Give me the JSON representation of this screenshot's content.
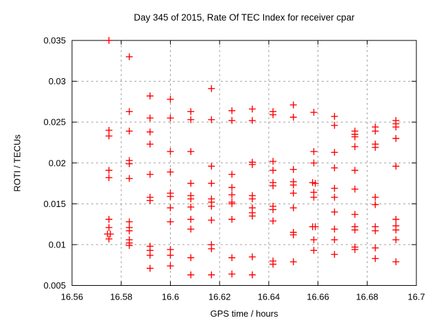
{
  "chart_data": {
    "type": "scatter",
    "title": "Day 345 of 2015, Rate Of TEC Index for receiver cpar",
    "xlabel": "GPS time / hours",
    "ylabel": "ROTI / TECUs",
    "xlim": [
      16.56,
      16.7
    ],
    "ylim": [
      0.005,
      0.035
    ],
    "xticks": [
      16.56,
      16.58,
      16.6,
      16.62,
      16.64,
      16.66,
      16.68,
      16.7
    ],
    "xtick_labels": [
      "16.56",
      "16.58",
      "16.6",
      "16.62",
      "16.64",
      "16.66",
      "16.68",
      "16.7"
    ],
    "yticks": [
      0.005,
      0.01,
      0.015,
      0.02,
      0.025,
      0.03,
      0.035
    ],
    "ytick_labels": [
      "0.005",
      "0.01",
      "0.015",
      "0.02",
      "0.025",
      "0.03",
      "0.035"
    ],
    "grid": true,
    "legend": "none",
    "marker": "plus",
    "marker_color": "#ff0000",
    "grid_color": "#a0a0a0",
    "axis_color": "#000000",
    "series": [
      {
        "name": "ROTI",
        "points": [
          [
            16.575,
            0.035
          ],
          [
            16.575,
            0.024
          ],
          [
            16.575,
            0.0233
          ],
          [
            16.575,
            0.0191
          ],
          [
            16.575,
            0.0182
          ],
          [
            16.575,
            0.0131
          ],
          [
            16.575,
            0.0121
          ],
          [
            16.5744,
            0.0113
          ],
          [
            16.5756,
            0.0113
          ],
          [
            16.575,
            0.0107
          ],
          [
            16.5833,
            0.033
          ],
          [
            16.5833,
            0.0263
          ],
          [
            16.5833,
            0.0239
          ],
          [
            16.5833,
            0.0203
          ],
          [
            16.5833,
            0.0199
          ],
          [
            16.5833,
            0.0181
          ],
          [
            16.5833,
            0.0128
          ],
          [
            16.5833,
            0.0121
          ],
          [
            16.5833,
            0.0117
          ],
          [
            16.5833,
            0.0106
          ],
          [
            16.5833,
            0.0102
          ],
          [
            16.5833,
            0.0099
          ],
          [
            16.5917,
            0.0282
          ],
          [
            16.5917,
            0.0255
          ],
          [
            16.5917,
            0.0238
          ],
          [
            16.5917,
            0.0223
          ],
          [
            16.5917,
            0.0186
          ],
          [
            16.5917,
            0.0158
          ],
          [
            16.5917,
            0.0154
          ],
          [
            16.5917,
            0.0098
          ],
          [
            16.5917,
            0.0093
          ],
          [
            16.5917,
            0.0087
          ],
          [
            16.5917,
            0.0071
          ],
          [
            16.6,
            0.0278
          ],
          [
            16.6,
            0.0255
          ],
          [
            16.6,
            0.0214
          ],
          [
            16.6,
            0.0189
          ],
          [
            16.6,
            0.0163
          ],
          [
            16.6,
            0.0159
          ],
          [
            16.6,
            0.0145
          ],
          [
            16.6,
            0.0128
          ],
          [
            16.6,
            0.0094
          ],
          [
            16.6,
            0.0087
          ],
          [
            16.6,
            0.0074
          ],
          [
            16.6083,
            0.0263
          ],
          [
            16.6083,
            0.0253
          ],
          [
            16.6083,
            0.0214
          ],
          [
            16.6083,
            0.0175
          ],
          [
            16.6083,
            0.016
          ],
          [
            16.6083,
            0.0156
          ],
          [
            16.6083,
            0.0146
          ],
          [
            16.6083,
            0.0131
          ],
          [
            16.6083,
            0.0119
          ],
          [
            16.6083,
            0.0084
          ],
          [
            16.6083,
            0.0063
          ],
          [
            16.6167,
            0.0291
          ],
          [
            16.6167,
            0.0253
          ],
          [
            16.6167,
            0.0196
          ],
          [
            16.6167,
            0.0175
          ],
          [
            16.6167,
            0.0156
          ],
          [
            16.6167,
            0.0152
          ],
          [
            16.6167,
            0.0147
          ],
          [
            16.6167,
            0.013
          ],
          [
            16.6167,
            0.01
          ],
          [
            16.6167,
            0.0095
          ],
          [
            16.6167,
            0.0063
          ],
          [
            16.625,
            0.0264
          ],
          [
            16.625,
            0.0252
          ],
          [
            16.625,
            0.0186
          ],
          [
            16.625,
            0.017
          ],
          [
            16.625,
            0.0161
          ],
          [
            16.625,
            0.0152
          ],
          [
            16.625,
            0.015
          ],
          [
            16.625,
            0.0131
          ],
          [
            16.625,
            0.0084
          ],
          [
            16.625,
            0.0064
          ],
          [
            16.6333,
            0.0266
          ],
          [
            16.6333,
            0.0252
          ],
          [
            16.6333,
            0.0201
          ],
          [
            16.6333,
            0.0198
          ],
          [
            16.6333,
            0.016
          ],
          [
            16.6333,
            0.0156
          ],
          [
            16.6333,
            0.0145
          ],
          [
            16.6333,
            0.0139
          ],
          [
            16.6333,
            0.0135
          ],
          [
            16.6333,
            0.0085
          ],
          [
            16.6333,
            0.0063
          ],
          [
            16.6417,
            0.0263
          ],
          [
            16.6417,
            0.0259
          ],
          [
            16.6417,
            0.0202
          ],
          [
            16.6417,
            0.0191
          ],
          [
            16.6417,
            0.0176
          ],
          [
            16.6417,
            0.0172
          ],
          [
            16.6417,
            0.0147
          ],
          [
            16.6417,
            0.0143
          ],
          [
            16.6417,
            0.0129
          ],
          [
            16.6417,
            0.008
          ],
          [
            16.6417,
            0.0076
          ],
          [
            16.65,
            0.0271
          ],
          [
            16.65,
            0.0256
          ],
          [
            16.65,
            0.0192
          ],
          [
            16.65,
            0.0177
          ],
          [
            16.65,
            0.0173
          ],
          [
            16.65,
            0.0163
          ],
          [
            16.65,
            0.0145
          ],
          [
            16.65,
            0.0115
          ],
          [
            16.65,
            0.0112
          ],
          [
            16.65,
            0.0079
          ],
          [
            16.6583,
            0.0262
          ],
          [
            16.6583,
            0.0214
          ],
          [
            16.6583,
            0.02
          ],
          [
            16.6578,
            0.0176
          ],
          [
            16.6589,
            0.0175
          ],
          [
            16.6583,
            0.0164
          ],
          [
            16.6583,
            0.0158
          ],
          [
            16.6578,
            0.0122
          ],
          [
            16.6589,
            0.0122
          ],
          [
            16.6583,
            0.0106
          ],
          [
            16.6583,
            0.0093
          ],
          [
            16.6667,
            0.0257
          ],
          [
            16.6667,
            0.0246
          ],
          [
            16.6667,
            0.0213
          ],
          [
            16.6667,
            0.0194
          ],
          [
            16.6667,
            0.0169
          ],
          [
            16.6667,
            0.0158
          ],
          [
            16.6667,
            0.014
          ],
          [
            16.6667,
            0.0119
          ],
          [
            16.6667,
            0.0106
          ],
          [
            16.6667,
            0.0088
          ],
          [
            16.675,
            0.0239
          ],
          [
            16.675,
            0.0235
          ],
          [
            16.675,
            0.0232
          ],
          [
            16.675,
            0.022
          ],
          [
            16.675,
            0.0191
          ],
          [
            16.675,
            0.0168
          ],
          [
            16.675,
            0.0137
          ],
          [
            16.675,
            0.0122
          ],
          [
            16.675,
            0.0118
          ],
          [
            16.675,
            0.0097
          ],
          [
            16.675,
            0.0094
          ],
          [
            16.6833,
            0.0244
          ],
          [
            16.6833,
            0.0239
          ],
          [
            16.6833,
            0.0223
          ],
          [
            16.6833,
            0.0219
          ],
          [
            16.6833,
            0.0158
          ],
          [
            16.6833,
            0.0149
          ],
          [
            16.6833,
            0.0122
          ],
          [
            16.6833,
            0.0117
          ],
          [
            16.6833,
            0.0096
          ],
          [
            16.6833,
            0.0083
          ],
          [
            16.6917,
            0.0252
          ],
          [
            16.6917,
            0.0248
          ],
          [
            16.6917,
            0.0244
          ],
          [
            16.6917,
            0.023
          ],
          [
            16.6917,
            0.0196
          ],
          [
            16.6917,
            0.0131
          ],
          [
            16.6917,
            0.0123
          ],
          [
            16.6917,
            0.0118
          ],
          [
            16.6917,
            0.0106
          ],
          [
            16.6917,
            0.0079
          ]
        ]
      }
    ]
  }
}
